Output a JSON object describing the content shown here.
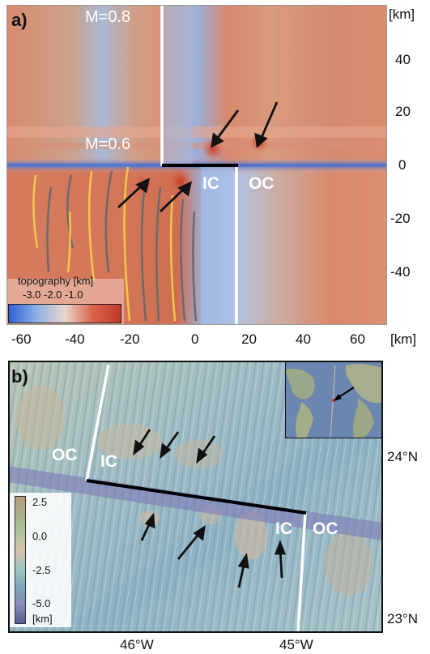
{
  "panel_a": {
    "label": "a)",
    "y_unit": "[km]",
    "x_unit": "[km]",
    "y_ticks": [
      "40",
      "20",
      "0",
      "-20",
      "-40"
    ],
    "x_ticks": [
      "-60",
      "-40",
      "-20",
      "0",
      "20",
      "40",
      "60"
    ],
    "label_m08": "M=0.8",
    "label_m06": "M=0.6",
    "label_ic": "IC",
    "label_oc": "OC",
    "colorbar": {
      "title": "topography [km]",
      "ticks": "-3.0 -2.0 -1.0",
      "colors": [
        "#2e63d6",
        "#8fb0e6",
        "#e8d6cc",
        "#d9644a",
        "#c0392b"
      ]
    }
  },
  "panel_b": {
    "label": "b)",
    "lat_ticks": [
      "24°N",
      "23°N"
    ],
    "lon_ticks": [
      "46°W",
      "45°W"
    ],
    "label_oc_left": "OC",
    "label_ic_left": "IC",
    "label_ic_right": "IC",
    "label_oc_right": "OC",
    "legend": {
      "ticks": [
        "2.5",
        "0.0",
        "-2.5",
        "-5.0"
      ],
      "unit": "[km]",
      "colors": [
        "#b89a7a",
        "#a8b08a",
        "#b0c4a0",
        "#d8c0a8",
        "#9ec8c4",
        "#7aa6b8",
        "#8a8ab8",
        "#5a5a9a"
      ]
    }
  }
}
